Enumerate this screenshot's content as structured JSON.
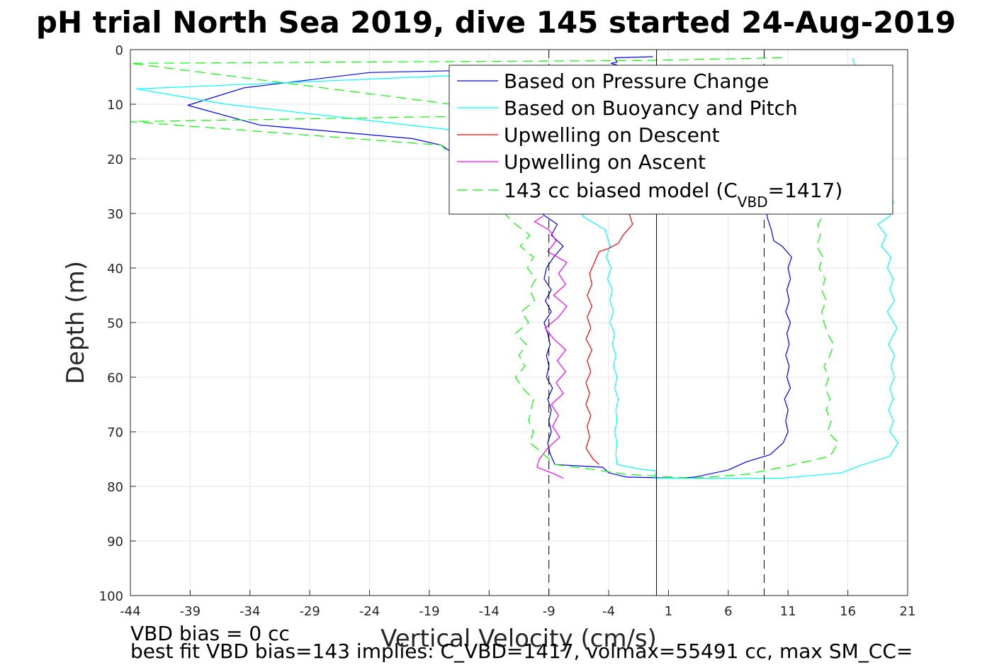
{
  "chart_data": {
    "type": "line",
    "title": "pH trial North Sea 2019, dive 145 started 24-Aug-2019",
    "xlabel": "Vertical Velocity (cm/s)",
    "ylabel": "Depth (m)",
    "xlim": [
      -44,
      21
    ],
    "ylim": [
      0,
      100
    ],
    "y_reversed": true,
    "grid": true,
    "legend_position": "top-right",
    "x_ticks": [
      -44,
      -39,
      -34,
      -29,
      -24,
      -19,
      -14,
      -9,
      -4,
      1,
      6,
      11,
      16,
      21
    ],
    "y_ticks": [
      0,
      10,
      20,
      30,
      40,
      50,
      60,
      70,
      80,
      90,
      100
    ],
    "reference_lines": [
      {
        "x": -9,
        "style": "dashed",
        "color": "#000000"
      },
      {
        "x": 0,
        "style": "solid",
        "color": "#000000"
      },
      {
        "x": 9,
        "style": "dashed",
        "color": "#000000"
      }
    ],
    "series": [
      {
        "name": "Based on Pressure Change",
        "color": "#0000ff",
        "dash": "solid",
        "points": [
          [
            -0.3,
            1.3
          ],
          [
            -3.5,
            1.5
          ],
          [
            -3.3,
            2.3
          ],
          [
            -3.8,
            2.5
          ],
          [
            -2.8,
            3.2
          ],
          [
            -24,
            4.2
          ],
          [
            -34.5,
            7
          ],
          [
            -39.2,
            10.2
          ],
          [
            -33.2,
            13.8
          ],
          [
            -20.4,
            16.3
          ],
          [
            -18,
            17.5
          ],
          [
            -8.3,
            32
          ],
          [
            -8.8,
            34
          ],
          [
            -7.8,
            36
          ],
          [
            -8.6,
            38
          ],
          [
            -9.2,
            40
          ],
          [
            -9.4,
            42
          ],
          [
            -8.8,
            44
          ],
          [
            -9.3,
            46
          ],
          [
            -8.8,
            48
          ],
          [
            -9.4,
            50
          ],
          [
            -9.1,
            52
          ],
          [
            -8.9,
            54
          ],
          [
            -9.2,
            56
          ],
          [
            -9.0,
            58
          ],
          [
            -9.2,
            60
          ],
          [
            -8.7,
            62
          ],
          [
            -9.1,
            64
          ],
          [
            -8.8,
            66
          ],
          [
            -9.0,
            68
          ],
          [
            -8.8,
            70
          ],
          [
            -9.1,
            72
          ],
          [
            -8.9,
            74
          ],
          [
            -8.5,
            76
          ],
          [
            -4.5,
            76.5
          ],
          [
            -4.0,
            77.5
          ],
          [
            -2.5,
            78.3
          ],
          [
            1.8,
            78.5
          ],
          [
            3.2,
            78.3
          ],
          [
            6,
            77
          ],
          [
            7.5,
            75.5
          ],
          [
            9.5,
            74.2
          ],
          [
            10.6,
            72
          ],
          [
            11,
            70
          ],
          [
            10.8,
            68
          ],
          [
            11,
            66
          ],
          [
            10.7,
            64
          ],
          [
            11.2,
            62
          ],
          [
            10.9,
            60
          ],
          [
            11.1,
            58
          ],
          [
            10.8,
            56
          ],
          [
            11.1,
            54
          ],
          [
            10.9,
            52
          ],
          [
            11.2,
            50
          ],
          [
            10.8,
            48
          ],
          [
            11.1,
            46
          ],
          [
            10.9,
            44
          ],
          [
            11.2,
            42
          ],
          [
            11,
            40
          ],
          [
            11.3,
            38
          ],
          [
            10.5,
            36
          ],
          [
            9.8,
            35
          ],
          [
            9.6,
            33
          ],
          [
            9.3,
            31
          ],
          [
            9.2,
            30
          ]
        ]
      },
      {
        "name": "Based on Buoyancy and Pitch",
        "color": "#00ffff",
        "dash": "solid",
        "points": [
          [
            -3.5,
            3.5
          ],
          [
            -43.5,
            7.2
          ],
          [
            -36,
            10
          ],
          [
            -14,
            15.5
          ],
          [
            -3.5,
            17
          ],
          [
            -6.2,
            30.5
          ],
          [
            -4.3,
            33
          ],
          [
            -3.9,
            36
          ],
          [
            -4.2,
            38
          ],
          [
            -3.8,
            40
          ],
          [
            -4.1,
            42
          ],
          [
            -3.7,
            44
          ],
          [
            -3.9,
            46
          ],
          [
            -3.6,
            48
          ],
          [
            -3.9,
            50
          ],
          [
            -3.5,
            52
          ],
          [
            -3.7,
            54
          ],
          [
            -3.4,
            56
          ],
          [
            -3.6,
            58
          ],
          [
            -3.3,
            60
          ],
          [
            -3.5,
            62
          ],
          [
            -3.2,
            64
          ],
          [
            -3.4,
            66
          ],
          [
            -3.3,
            68
          ],
          [
            -3.5,
            70
          ],
          [
            -3.3,
            72
          ],
          [
            -3.4,
            74
          ],
          [
            -3.3,
            76
          ],
          [
            -1.5,
            76.8
          ],
          [
            0,
            77.2
          ],
          [
            -0.2,
            78.5
          ],
          [
            10.5,
            78.5
          ],
          [
            15.5,
            77.5
          ],
          [
            17,
            76.2
          ],
          [
            19.5,
            74.5
          ],
          [
            20.2,
            72
          ],
          [
            19.5,
            70
          ],
          [
            19.8,
            68
          ],
          [
            19.4,
            66
          ],
          [
            19.8,
            64
          ],
          [
            19.5,
            62
          ],
          [
            19.9,
            60
          ],
          [
            19.6,
            58
          ],
          [
            19.9,
            56
          ],
          [
            19.4,
            54
          ],
          [
            20.1,
            51
          ],
          [
            19.3,
            48
          ],
          [
            19.9,
            46
          ],
          [
            19.5,
            44
          ],
          [
            19.8,
            42
          ],
          [
            19.3,
            40
          ],
          [
            19.6,
            38
          ],
          [
            18.8,
            36
          ],
          [
            19.2,
            34
          ],
          [
            18.5,
            32
          ],
          [
            19.5,
            30.5
          ],
          [
            19.8,
            28
          ],
          [
            16.4,
            1.5
          ]
        ]
      },
      {
        "name": "Upwelling on Descent",
        "color": "#ff0000",
        "dash": "solid",
        "points": [
          [
            -2.3,
            30
          ],
          [
            -2.0,
            32
          ],
          [
            -2.8,
            34
          ],
          [
            -3.2,
            35.5
          ],
          [
            -4.1,
            36.5
          ],
          [
            -4.8,
            37
          ],
          [
            -5.2,
            39
          ],
          [
            -5.6,
            41
          ],
          [
            -5.4,
            43
          ],
          [
            -5.8,
            45
          ],
          [
            -5.4,
            47
          ],
          [
            -5.8,
            49
          ],
          [
            -5.5,
            51
          ],
          [
            -5.9,
            53
          ],
          [
            -5.4,
            55
          ],
          [
            -5.8,
            57
          ],
          [
            -5.5,
            59
          ],
          [
            -5.9,
            61
          ],
          [
            -5.6,
            63
          ],
          [
            -5.9,
            65
          ],
          [
            -5.5,
            67
          ],
          [
            -5.8,
            69
          ],
          [
            -5.6,
            71
          ],
          [
            -5.9,
            73
          ],
          [
            -5.3,
            75
          ],
          [
            -4.8,
            76
          ]
        ]
      },
      {
        "name": "Upwelling on Ascent",
        "color": "#ff00ff",
        "dash": "solid",
        "points": [
          [
            -7.8,
            78.5
          ],
          [
            -8.8,
            77.5
          ],
          [
            -10,
            76.5
          ],
          [
            -9.8,
            75
          ],
          [
            -9.1,
            73
          ],
          [
            -8.1,
            71
          ],
          [
            -8.7,
            69
          ],
          [
            -8.2,
            67
          ],
          [
            -8.8,
            65
          ],
          [
            -7.8,
            63
          ],
          [
            -8.4,
            61
          ],
          [
            -7.6,
            59
          ],
          [
            -8.3,
            57
          ],
          [
            -7.6,
            55
          ],
          [
            -8.6,
            53
          ],
          [
            -9.3,
            51
          ],
          [
            -8.2,
            49
          ],
          [
            -7.5,
            47
          ],
          [
            -8.6,
            45
          ],
          [
            -7.6,
            43
          ],
          [
            -8.2,
            41
          ],
          [
            -7.5,
            39
          ],
          [
            -9.1,
            37
          ],
          [
            -8.4,
            35
          ],
          [
            -9.0,
            33
          ],
          [
            -10.2,
            31.5
          ],
          [
            -9.5,
            30.5
          ]
        ]
      },
      {
        "name": "143 cc biased model (C_VBD=1417)",
        "legend_base": "143 cc biased model (C",
        "legend_sub": "VBD",
        "legend_tail": "=1417)",
        "color": "#00ff00",
        "dash": "dashed",
        "points": [
          [
            10.5,
            1.5
          ],
          [
            -1.5,
            2.0
          ],
          [
            -44,
            2.5
          ],
          [
            -10,
            12
          ],
          [
            -44,
            13.2
          ],
          [
            -18,
            17.5
          ],
          [
            -12.5,
            30.5
          ],
          [
            -11.8,
            32
          ],
          [
            -10.6,
            34
          ],
          [
            -11.4,
            36
          ],
          [
            -10.3,
            38
          ],
          [
            -10.8,
            40
          ],
          [
            -10.1,
            42
          ],
          [
            -10.6,
            44
          ],
          [
            -10.2,
            46
          ],
          [
            -11.3,
            48
          ],
          [
            -10.7,
            50
          ],
          [
            -11.8,
            52
          ],
          [
            -10.9,
            54
          ],
          [
            -11.5,
            56
          ],
          [
            -11.0,
            58
          ],
          [
            -11.8,
            60
          ],
          [
            -11.2,
            62
          ],
          [
            -10.3,
            64
          ],
          [
            -10.5,
            66
          ],
          [
            -10.7,
            68
          ],
          [
            -10.3,
            70
          ],
          [
            -10.6,
            72
          ],
          [
            -9.5,
            74
          ],
          [
            -8.5,
            76
          ],
          [
            -5,
            77
          ],
          [
            -2.5,
            77.8
          ],
          [
            3,
            78.5
          ],
          [
            7.5,
            77.8
          ],
          [
            10.5,
            76.5
          ],
          [
            14.5,
            74.5
          ],
          [
            15.2,
            72
          ],
          [
            14.3,
            70
          ],
          [
            14.6,
            68
          ],
          [
            14.2,
            66
          ],
          [
            14.5,
            64
          ],
          [
            14.1,
            62
          ],
          [
            14.4,
            60
          ],
          [
            14.0,
            58
          ],
          [
            14.5,
            56
          ],
          [
            14.8,
            54
          ],
          [
            14.3,
            52
          ],
          [
            14.0,
            50
          ],
          [
            13.8,
            48
          ],
          [
            14.2,
            46
          ],
          [
            13.8,
            44
          ],
          [
            14.1,
            42
          ],
          [
            13.6,
            40
          ],
          [
            13.9,
            38
          ],
          [
            13.4,
            36
          ],
          [
            13.7,
            34
          ],
          [
            13.5,
            32
          ],
          [
            14.0,
            30
          ]
        ]
      }
    ]
  },
  "footer": {
    "line1": "VBD bias = 0 cc",
    "line2": "best fit VBD bias=143 implies: C_VBD=1417, volmax=55491 cc, max SM_CC="
  }
}
